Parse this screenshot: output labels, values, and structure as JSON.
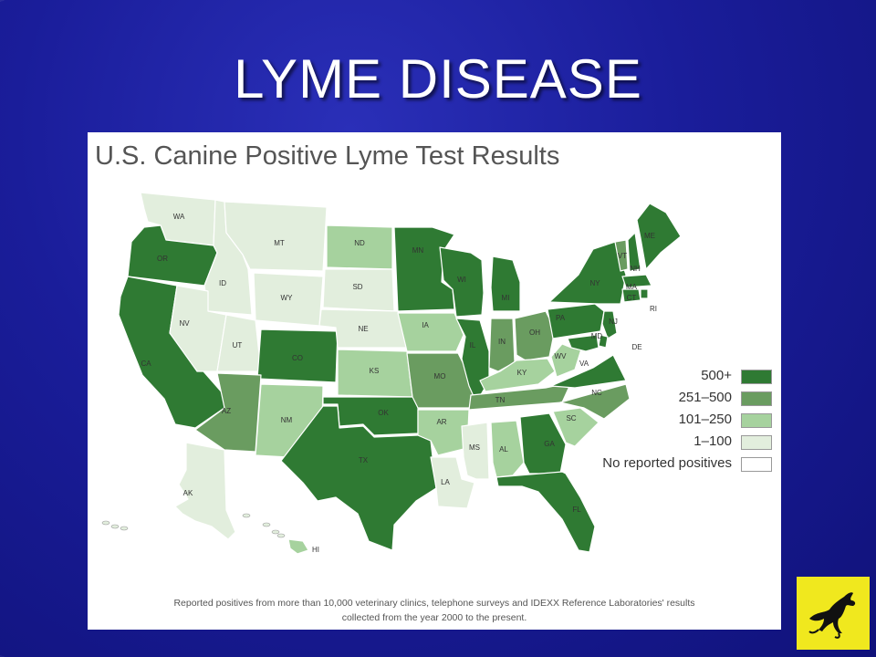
{
  "slide": {
    "title": "LYME DISEASE"
  },
  "map": {
    "title": "U.S. Canine Positive Lyme Test Results",
    "legend": [
      {
        "label": "500+",
        "color": "#2f7a33"
      },
      {
        "label": "251–500",
        "color": "#6a9c60"
      },
      {
        "label": "101–250",
        "color": "#a6d29e"
      },
      {
        "label": "1–100",
        "color": "#e2eedd"
      },
      {
        "label": "No reported positives",
        "color": "#ffffff"
      }
    ],
    "states": [
      {
        "abbr": "WA",
        "category": "1–100"
      },
      {
        "abbr": "OR",
        "category": "500+"
      },
      {
        "abbr": "CA",
        "category": "500+"
      },
      {
        "abbr": "ID",
        "category": "1–100"
      },
      {
        "abbr": "NV",
        "category": "1–100"
      },
      {
        "abbr": "MT",
        "category": "1–100"
      },
      {
        "abbr": "WY",
        "category": "1–100"
      },
      {
        "abbr": "UT",
        "category": "1–100"
      },
      {
        "abbr": "CO",
        "category": "500+"
      },
      {
        "abbr": "AZ",
        "category": "251–500"
      },
      {
        "abbr": "NM",
        "category": "101–250"
      },
      {
        "abbr": "ND",
        "category": "101–250"
      },
      {
        "abbr": "SD",
        "category": "1–100"
      },
      {
        "abbr": "NE",
        "category": "1–100"
      },
      {
        "abbr": "KS",
        "category": "101–250"
      },
      {
        "abbr": "OK",
        "category": "500+"
      },
      {
        "abbr": "TX",
        "category": "500+"
      },
      {
        "abbr": "MN",
        "category": "500+"
      },
      {
        "abbr": "IA",
        "category": "101–250"
      },
      {
        "abbr": "MO",
        "category": "251–500"
      },
      {
        "abbr": "AR",
        "category": "101–250"
      },
      {
        "abbr": "LA",
        "category": "1–100"
      },
      {
        "abbr": "WI",
        "category": "500+"
      },
      {
        "abbr": "IL",
        "category": "500+"
      },
      {
        "abbr": "MS",
        "category": "1–100"
      },
      {
        "abbr": "MI",
        "category": "500+"
      },
      {
        "abbr": "IN",
        "category": "251–500"
      },
      {
        "abbr": "OH",
        "category": "251–500"
      },
      {
        "abbr": "KY",
        "category": "101–250"
      },
      {
        "abbr": "TN",
        "category": "251–500"
      },
      {
        "abbr": "AL",
        "category": "101–250"
      },
      {
        "abbr": "GA",
        "category": "500+"
      },
      {
        "abbr": "FL",
        "category": "500+"
      },
      {
        "abbr": "SC",
        "category": "101–250"
      },
      {
        "abbr": "NC",
        "category": "251–500"
      },
      {
        "abbr": "VA",
        "category": "500+"
      },
      {
        "abbr": "WV",
        "category": "101–250"
      },
      {
        "abbr": "PA",
        "category": "500+"
      },
      {
        "abbr": "NY",
        "category": "500+"
      },
      {
        "abbr": "VT",
        "category": "251–500"
      },
      {
        "abbr": "NH",
        "category": "500+"
      },
      {
        "abbr": "ME",
        "category": "500+"
      },
      {
        "abbr": "MA",
        "category": "500+"
      },
      {
        "abbr": "CT",
        "category": "500+"
      },
      {
        "abbr": "RI",
        "category": "500+"
      },
      {
        "abbr": "NJ",
        "category": "500+"
      },
      {
        "abbr": "DE",
        "category": "500+"
      },
      {
        "abbr": "MD",
        "category": "500+"
      },
      {
        "abbr": "AK",
        "category": "1–100"
      },
      {
        "abbr": "HI",
        "category": "101–250"
      }
    ],
    "footnote_line1": "Reported positives from more than 10,000 veterinary clinics, telephone surveys and IDEXX Reference Laboratories' results",
    "footnote_line2": "collected from the year 2000 to the present."
  },
  "logo": {
    "icon": "horse-icon"
  }
}
